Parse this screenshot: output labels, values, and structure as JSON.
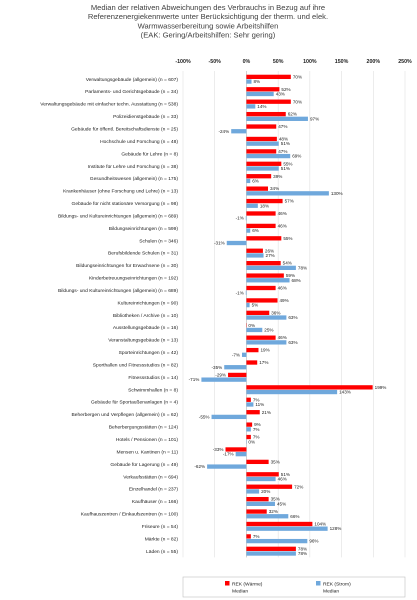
{
  "chart_data": {
    "type": "bar",
    "orientation": "horizontal",
    "title_lines": [
      "Median der relativen Abweichungen des Verbrauchs in Bezug auf ihre",
      "Referenzenergiekennwerte unter Berücksichtigung der therm. und elek.",
      "Warmwasserbereitung sowie Arbeitshilfen",
      "(EAK: Gering/Arbeitshilfen: Sehr gering)"
    ],
    "x_tick_labels": [
      "-100%",
      "-50%",
      "0%",
      "50%",
      "100%",
      "150%",
      "200%",
      "250%"
    ],
    "xlim": [
      -100,
      250
    ],
    "value_unit": "%",
    "colors": {
      "waerme": "#ff0000",
      "strom": "#6fa8dc"
    },
    "legend": {
      "waerme": [
        "REK (Wärme)",
        "Median"
      ],
      "strom": [
        "REK (Strom)",
        "Median"
      ]
    },
    "categories": [
      "Verwaltungsgebäude (allgemein) (n = 607)",
      "Parlaments- und Gerichtsgebäude (n = 34)",
      "Verwaltungsgebäude mit einfacher techn. Ausstattung (n = 538)",
      "Polizeidienstgebäude (n = 33)",
      "Gebäude für öffentl. Bereitschaftsdienste (n = 25)",
      "Hochschule und Forschung (n = 48)",
      "Gebäude für Lehre (n = 8)",
      "Institute für Lehre und Forschung (n = 38)",
      "Gesundheitswesen (allgemein) (n = 175)",
      "Krankenhäuser (ohne Forschung und Lehre) (n = 13)",
      "Gebäude für nicht stationäre Versorgung (n = 98)",
      "Bildungs- und Kultureinrichtungen (allgemein) (n = 689)",
      "Bildungseinrichtungen (n = 599)",
      "Schulen (n = 346)",
      "Berufsbildende Schulen (n = 31)",
      "Bildungseinrichtungen für Erwachsene (n = 30)",
      "Kinderbetreuungseinrichtungen (n = 192)",
      "Bildungs- und Kultureinrichtungen (allgemein) (n = 689)",
      "Kultureinrichtungen (n = 90)",
      "Bibliotheken / Archive (n = 10)",
      "Ausstellungsgebäude (n = 16)",
      "Veranstaltungsgebäude (n = 13)",
      "Sporteinrichtungen (n = 42)",
      "Sporthallen und Fitnessstudios (n = 82)",
      "Fitnessstudios (n = 14)",
      "Schwimmhallen (n = 8)",
      "Gebäude für Sportaußenanlagen (n = 4)",
      "Beherbergen und Verpflegen (allgemein) (n = 62)",
      "Beherbergungsstätten (n = 124)",
      "Hotels / Pensionen (n = 101)",
      "Mensen u. Kantinen (n = 11)",
      "Gebäude für Lagerung (n = 49)",
      "Verkaufsstätten (n = 694)",
      "Einzelhandel (n = 237)",
      "Kaufhäuser (n = 166)",
      "Kaufhauszentren / Einkaufszentren (n = 100)",
      "Friseure (n = 54)",
      "Märkte (n = 82)",
      "Läden (n = 55)"
    ],
    "series": [
      {
        "name": "REK (Wärme) Median",
        "values": [
          70,
          52,
          70,
          62,
          47,
          48,
          47,
          55,
          39,
          34,
          57,
          46,
          46,
          55,
          26,
          54,
          59,
          46,
          49,
          36,
          0,
          46,
          19,
          17,
          -29,
          199,
          7,
          21,
          9,
          7,
          -33,
          35,
          51,
          72,
          35,
          32,
          104,
          7,
          78
        ]
      },
      {
        "name": "REK (Strom) Median",
        "values": [
          8,
          43,
          14,
          97,
          -24,
          51,
          69,
          51,
          6,
          130,
          18,
          -1,
          6,
          -31,
          27,
          78,
          68,
          -1,
          5,
          63,
          25,
          63,
          -7,
          -35,
          -71,
          143,
          11,
          -55,
          7,
          0,
          -17,
          -62,
          46,
          20,
          45,
          66,
          128,
          96,
          78
        ]
      }
    ]
  }
}
